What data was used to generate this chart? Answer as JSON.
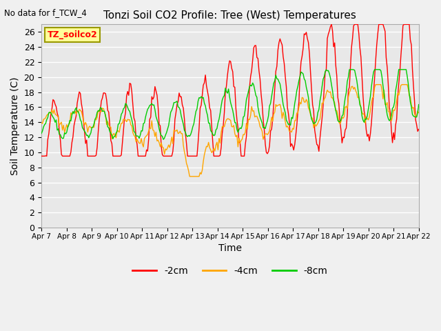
{
  "title": "Tonzi Soil CO2 Profile: Tree (West) Temperatures",
  "no_data_label": "No data for f_TCW_4",
  "xlabel": "Time",
  "ylabel": "Soil Temperature (C)",
  "ylim": [
    0,
    27
  ],
  "yticks": [
    0,
    2,
    4,
    6,
    8,
    10,
    12,
    14,
    16,
    18,
    20,
    22,
    24,
    26
  ],
  "x_tick_labels": [
    "Apr 7",
    "Apr 8",
    "Apr 9",
    "Apr 10",
    "Apr 11",
    "Apr 12",
    "Apr 13",
    "Apr 14",
    "Apr 15",
    "Apr 16",
    "Apr 17",
    "Apr 18",
    "Apr 19",
    "Apr 20",
    "Apr 21",
    "Apr 22"
  ],
  "colors": {
    "2cm": "#ff0000",
    "4cm": "#ffa500",
    "8cm": "#00cc00"
  },
  "legend_label": "TZ_soilco2",
  "legend_bg": "#ffff99",
  "legend_border": "#999900",
  "plot_bg": "#e8e8e8",
  "fig_bg": "#f0f0f0",
  "grid_color": "#ffffff",
  "line_width": 1.0
}
